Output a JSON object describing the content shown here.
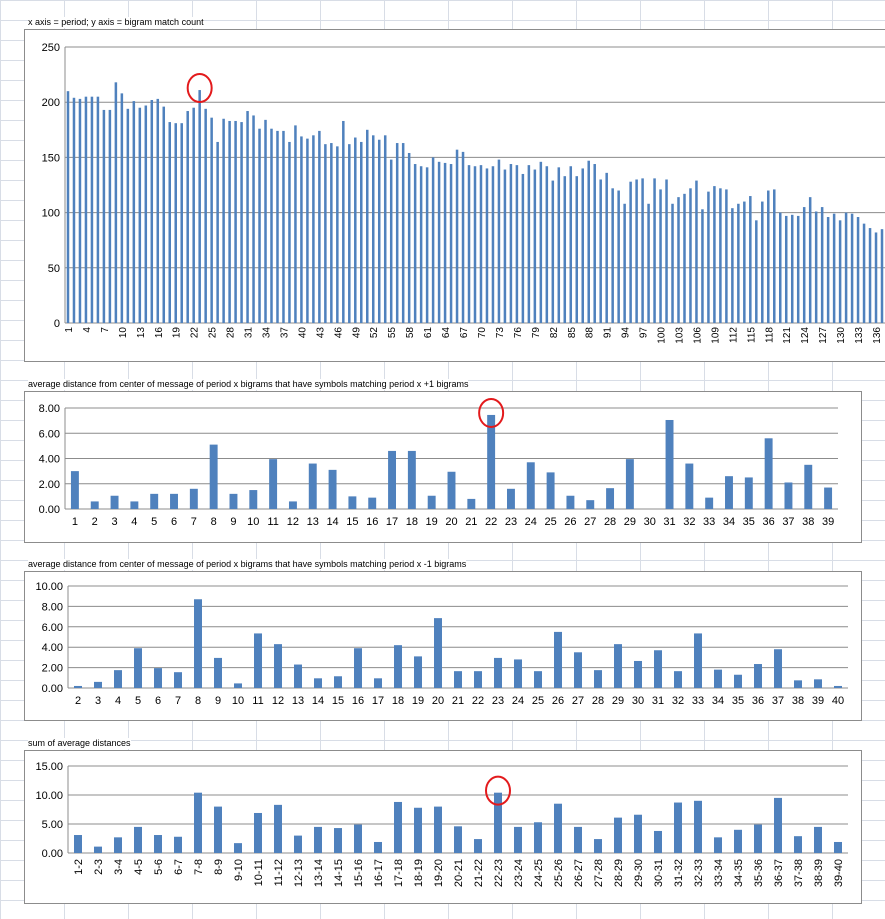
{
  "charts": [
    {
      "title": "x axis = period; y axis = bigram match count",
      "chart_data": {
        "type": "bar",
        "title": "x axis = period; y axis = bigram match count",
        "xlabel": "",
        "ylabel": "",
        "ylim": [
          0,
          250
        ],
        "yticks": [
          "0",
          "50",
          "100",
          "150",
          "200",
          "250"
        ],
        "grid": true,
        "x": [
          1,
          2,
          3,
          4,
          5,
          6,
          7,
          8,
          9,
          10,
          11,
          12,
          13,
          14,
          15,
          16,
          17,
          18,
          19,
          20,
          21,
          22,
          23,
          24,
          25,
          26,
          27,
          28,
          29,
          30,
          31,
          32,
          33,
          34,
          35,
          36,
          37,
          38,
          39,
          40,
          41,
          42,
          43,
          44,
          45,
          46,
          47,
          48,
          49,
          50,
          51,
          52,
          53,
          54,
          55,
          56,
          57,
          58,
          59,
          60,
          61,
          62,
          63,
          64,
          65,
          66,
          67,
          68,
          69,
          70,
          71,
          72,
          73,
          74,
          75,
          76,
          77,
          78,
          79,
          80,
          81,
          82,
          83,
          84,
          85,
          86,
          87,
          88,
          89,
          90,
          91,
          92,
          93,
          94,
          95,
          96,
          97,
          98,
          99,
          100,
          101,
          102,
          103,
          104,
          105,
          106,
          107,
          108,
          109,
          110,
          111,
          112,
          113,
          114,
          115,
          116,
          117,
          118,
          119,
          120,
          121,
          122,
          123,
          124,
          125,
          126,
          127,
          128,
          129,
          130,
          131,
          132,
          133,
          134,
          135,
          136,
          137
        ],
        "xtick_labels": [
          "1",
          "4",
          "7",
          "10",
          "13",
          "16",
          "19",
          "22",
          "25",
          "28",
          "31",
          "34",
          "37",
          "40",
          "43",
          "46",
          "49",
          "52",
          "55",
          "58",
          "61",
          "64",
          "67",
          "70",
          "73",
          "76",
          "79",
          "82",
          "85",
          "88",
          "91",
          "94",
          "97",
          "100",
          "103",
          "106",
          "109",
          "112",
          "115",
          "118",
          "121",
          "124",
          "127",
          "130",
          "133",
          "136"
        ],
        "values": [
          210,
          204,
          203,
          205,
          205,
          205,
          193,
          193,
          218,
          208,
          194,
          201,
          195,
          197,
          202,
          203,
          196,
          182,
          181,
          181,
          192,
          195,
          211,
          194,
          186,
          164,
          185,
          183,
          183,
          182,
          192,
          188,
          176,
          184,
          176,
          174,
          174,
          164,
          179,
          169,
          167,
          170,
          174,
          162,
          163,
          160,
          183,
          162,
          168,
          164,
          175,
          170,
          166,
          170,
          148,
          163,
          163,
          154,
          144,
          142,
          141,
          150,
          146,
          145,
          144,
          157,
          155,
          143,
          142,
          143,
          140,
          142,
          148,
          139,
          144,
          143,
          135,
          143,
          139,
          146,
          142,
          129,
          141,
          133,
          142,
          133,
          140,
          147,
          144,
          130,
          136,
          122,
          120,
          108,
          128,
          130,
          131,
          108,
          131,
          121,
          130,
          108,
          114,
          117,
          122,
          129,
          103,
          119,
          124,
          122,
          121,
          104,
          108,
          110,
          115,
          93,
          110,
          120,
          121,
          100,
          97,
          98,
          97,
          105,
          114,
          101,
          105,
          96,
          99,
          93,
          100,
          99,
          96,
          90,
          86,
          82,
          85
        ],
        "highlight": {
          "x": 23,
          "marker": "red-circle"
        }
      }
    },
    {
      "title": "average distance from center of message of period x bigrams that have symbols matching period x +1 bigrams",
      "chart_data": {
        "type": "bar",
        "title": "average distance from center of message of period x bigrams that have symbols matching period x +1 bigrams",
        "xlabel": "",
        "ylabel": "",
        "ylim": [
          0,
          8
        ],
        "yticks": [
          "0.00",
          "2.00",
          "4.00",
          "6.00",
          "8.00"
        ],
        "grid": true,
        "categories": [
          "1",
          "2",
          "3",
          "4",
          "5",
          "6",
          "7",
          "8",
          "9",
          "10",
          "11",
          "12",
          "13",
          "14",
          "15",
          "16",
          "17",
          "18",
          "19",
          "20",
          "21",
          "22",
          "23",
          "24",
          "25",
          "26",
          "27",
          "28",
          "29",
          "30",
          "31",
          "32",
          "33",
          "34",
          "35",
          "36",
          "37",
          "38",
          "39"
        ],
        "values": [
          3.0,
          0.6,
          1.05,
          0.6,
          1.2,
          1.2,
          1.6,
          5.1,
          1.2,
          1.5,
          3.95,
          0.6,
          3.6,
          3.1,
          1.0,
          0.9,
          4.6,
          4.6,
          1.05,
          2.95,
          0.8,
          7.45,
          1.6,
          3.7,
          2.9,
          1.05,
          0.7,
          1.65,
          3.95,
          0,
          7.05,
          3.6,
          0.9,
          2.6,
          2.5,
          5.6,
          2.1,
          3.5,
          1.7
        ],
        "highlight": {
          "category": "22",
          "marker": "red-circle"
        }
      }
    },
    {
      "title": "average distance from center of message of period x bigrams that have symbols matching period x -1 bigrams",
      "chart_data": {
        "type": "bar",
        "title": "average distance from center of message of period x bigrams that have symbols matching period x -1 bigrams",
        "xlabel": "",
        "ylabel": "",
        "ylim": [
          0,
          10
        ],
        "yticks": [
          "0.00",
          "2.00",
          "4.00",
          "6.00",
          "8.00",
          "10.00"
        ],
        "grid": true,
        "categories": [
          "2",
          "3",
          "4",
          "5",
          "6",
          "7",
          "8",
          "9",
          "10",
          "11",
          "12",
          "13",
          "14",
          "15",
          "16",
          "17",
          "18",
          "19",
          "20",
          "21",
          "22",
          "23",
          "24",
          "25",
          "26",
          "27",
          "28",
          "29",
          "30",
          "31",
          "32",
          "33",
          "34",
          "35",
          "36",
          "37",
          "38",
          "39",
          "40"
        ],
        "values": [
          0.2,
          0.6,
          1.75,
          3.9,
          1.95,
          1.55,
          8.7,
          2.95,
          0.45,
          5.35,
          4.3,
          2.3,
          0.95,
          1.15,
          3.9,
          0.95,
          4.2,
          3.1,
          6.85,
          1.65,
          1.65,
          2.95,
          2.8,
          1.65,
          5.5,
          3.5,
          1.75,
          4.3,
          2.65,
          3.7,
          1.65,
          5.35,
          1.8,
          1.3,
          2.35,
          3.8,
          0.75,
          0.85,
          0.2
        ]
      }
    },
    {
      "title": "sum of average distances",
      "chart_data": {
        "type": "bar",
        "title": "sum of average distances",
        "xlabel": "",
        "ylabel": "",
        "ylim": [
          0,
          15
        ],
        "yticks": [
          "0.00",
          "5.00",
          "10.00",
          "15.00"
        ],
        "grid": true,
        "categories": [
          "1-2",
          "2-3",
          "3-4",
          "4-5",
          "5-6",
          "6-7",
          "7-8",
          "8-9",
          "9-10",
          "10-11",
          "11-12",
          "12-13",
          "13-14",
          "14-15",
          "15-16",
          "16-17",
          "17-18",
          "18-19",
          "19-20",
          "20-21",
          "21-22",
          "22-23",
          "23-24",
          "24-25",
          "25-26",
          "26-27",
          "27-28",
          "28-29",
          "29-30",
          "30-31",
          "31-32",
          "32-33",
          "33-34",
          "34-35",
          "35-36",
          "36-37",
          "37-38",
          "38-39",
          "39-40"
        ],
        "values": [
          3.1,
          1.1,
          2.7,
          4.5,
          3.1,
          2.8,
          10.4,
          8.0,
          1.7,
          6.9,
          8.3,
          3.0,
          4.5,
          4.3,
          4.9,
          1.9,
          8.8,
          7.8,
          8.0,
          4.6,
          2.4,
          10.4,
          4.5,
          5.3,
          8.5,
          4.5,
          2.4,
          6.1,
          6.6,
          3.8,
          8.7,
          9.0,
          2.7,
          4.0,
          4.9,
          9.5,
          2.9,
          4.5,
          1.9
        ],
        "highlight": {
          "category": "22-23",
          "marker": "red-circle"
        }
      }
    }
  ]
}
